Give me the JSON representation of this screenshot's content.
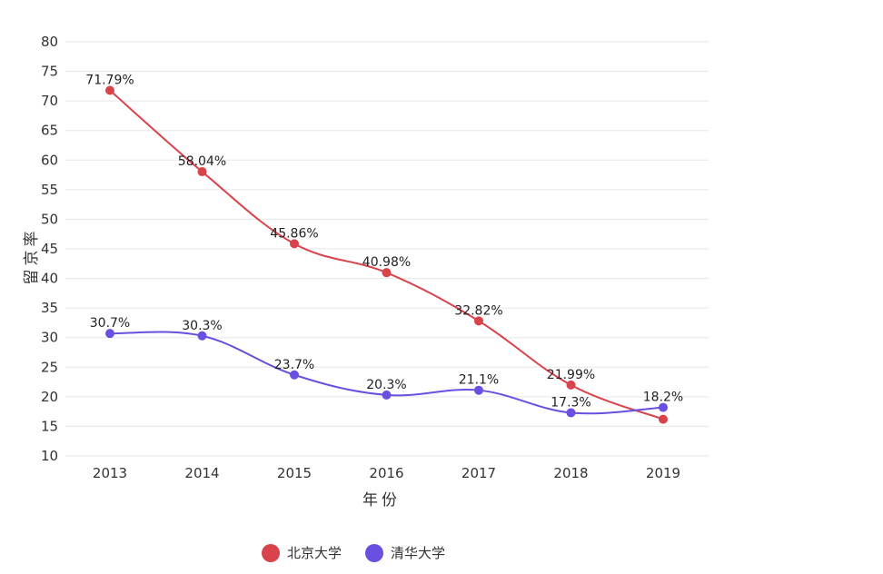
{
  "chart_data": {
    "type": "line",
    "xlabel": "年份",
    "ylabel": "留京率",
    "ylim": [
      10,
      80
    ],
    "yticks": [
      80,
      75,
      70,
      65,
      60,
      55,
      50,
      45,
      40,
      35,
      30,
      25,
      20,
      15,
      10
    ],
    "categories": [
      "2013",
      "2014",
      "2015",
      "2016",
      "2017",
      "2018",
      "2019"
    ],
    "grid": true,
    "legend_position": "bottom-center",
    "series": [
      {
        "name": "北京大学",
        "color": "#d9434b",
        "values": [
          71.79,
          58.04,
          45.86,
          40.98,
          32.82,
          21.99,
          16.2
        ],
        "labels": [
          "71.79%",
          "58.04%",
          "45.86%",
          "40.98%",
          "32.82%",
          "21.99%",
          ""
        ]
      },
      {
        "name": "清华大学",
        "color": "#6a4fe0",
        "values": [
          30.7,
          30.3,
          23.7,
          20.3,
          21.1,
          17.3,
          18.2
        ],
        "labels": [
          "30.7%",
          "30.3%",
          "23.7%",
          "20.3%",
          "21.1%",
          "17.3%",
          "18.2%"
        ]
      }
    ]
  }
}
